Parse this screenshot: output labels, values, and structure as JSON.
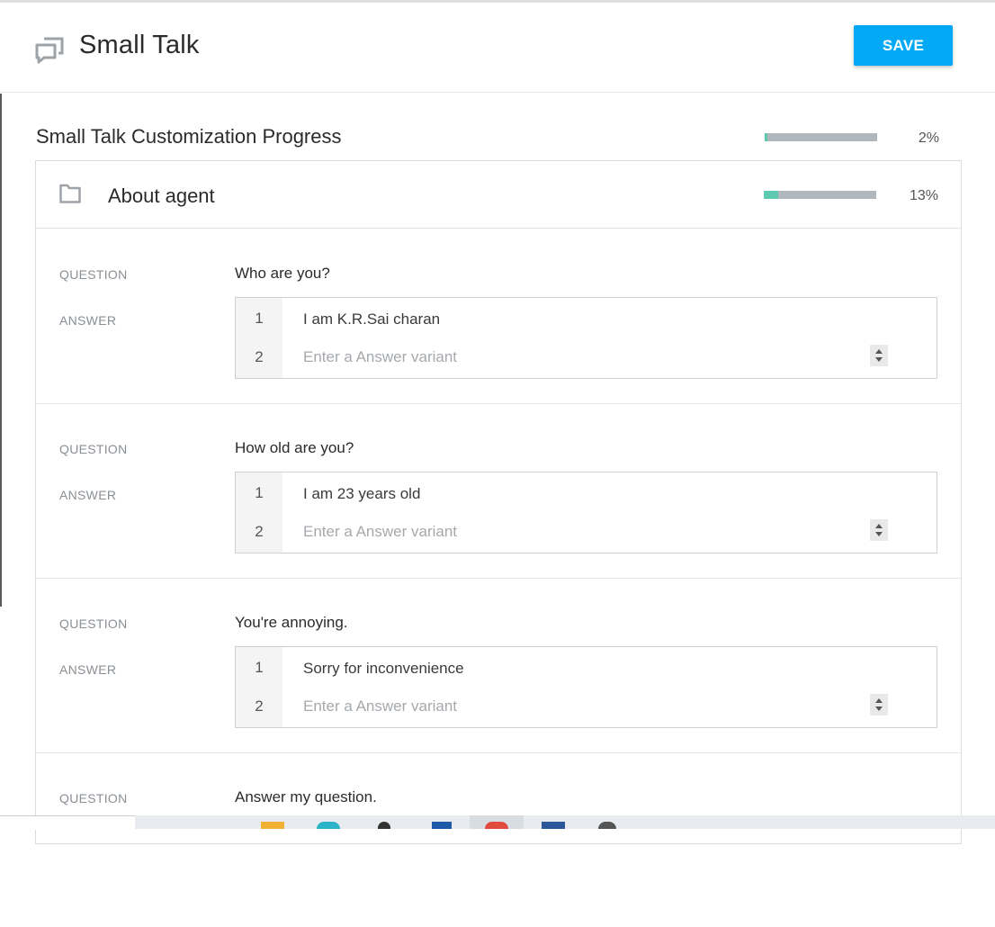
{
  "header": {
    "title": "Small Talk",
    "save_label": "SAVE",
    "icon": "chat-bubbles-icon"
  },
  "progress": {
    "title": "Small Talk Customization Progress",
    "value_label": "2%",
    "value": 0.02
  },
  "section": {
    "title": "About agent",
    "icon": "folder-icon",
    "value_label": "13%",
    "value": 0.13
  },
  "labels": {
    "question": "QUESTION",
    "answer": "ANSWER"
  },
  "qa_items": [
    {
      "question": "Who are you?",
      "answers": [
        "I am K.R.Sai charan"
      ],
      "placeholder": "Enter a Answer variant"
    },
    {
      "question": "How old are you?",
      "answers": [
        "I am 23 years old"
      ],
      "placeholder": "Enter a Answer variant"
    },
    {
      "question": "You're annoying.",
      "answers": [
        "Sorry for inconvenience"
      ],
      "placeholder": "Enter a Answer variant"
    },
    {
      "question": "Answer my question."
    }
  ],
  "row_numbers": [
    "1",
    "2"
  ],
  "colors": {
    "accent": "#03a9f4",
    "progress_fill": "#5dc9b1",
    "progress_track": "#b0b7bd"
  }
}
